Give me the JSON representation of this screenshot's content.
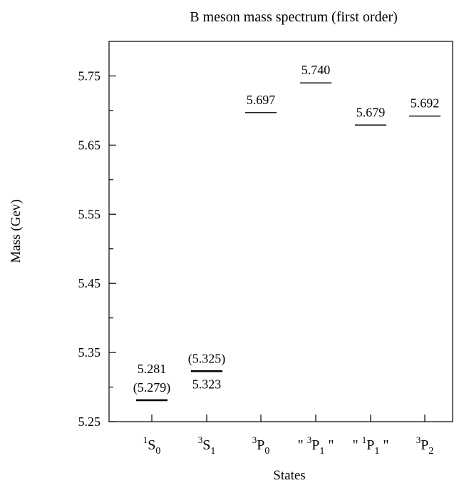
{
  "chart_data": {
    "type": "scatter",
    "title": "B meson mass spectrum (first order)",
    "xlabel": "States",
    "ylabel": "Mass (Gev)",
    "ylim": [
      5.25,
      5.8
    ],
    "yticks": [
      "5.25",
      "5.35",
      "5.45",
      "5.55",
      "5.65",
      "5.75"
    ],
    "grid": false,
    "legend": "none",
    "states": [
      {
        "pre": "",
        "sup": "1",
        "letter": "S",
        "sub": "0",
        "post": "",
        "value": 5.281,
        "labels_above": [
          "5.281",
          "(5.279)"
        ],
        "labels_below": []
      },
      {
        "pre": "",
        "sup": "3",
        "letter": "S",
        "sub": "1",
        "post": "",
        "value": 5.323,
        "labels_above": [
          "(5.325)"
        ],
        "labels_below": [
          "5.323"
        ]
      },
      {
        "pre": "",
        "sup": "3",
        "letter": "P",
        "sub": "0",
        "post": "",
        "value": 5.697,
        "labels_above": [
          "5.697"
        ],
        "labels_below": []
      },
      {
        "pre": "\"",
        "sup": "3",
        "letter": "P",
        "sub": "1",
        "post": "\"",
        "value": 5.74,
        "labels_above": [
          "5.740"
        ],
        "labels_below": []
      },
      {
        "pre": "\"",
        "sup": "1",
        "letter": "P",
        "sub": "1",
        "post": "\"",
        "value": 5.679,
        "labels_above": [
          "5.679"
        ],
        "labels_below": []
      },
      {
        "pre": "",
        "sup": "3",
        "letter": "P",
        "sub": "2",
        "post": "",
        "value": 5.692,
        "labels_above": [
          "5.692"
        ],
        "labels_below": []
      }
    ]
  }
}
